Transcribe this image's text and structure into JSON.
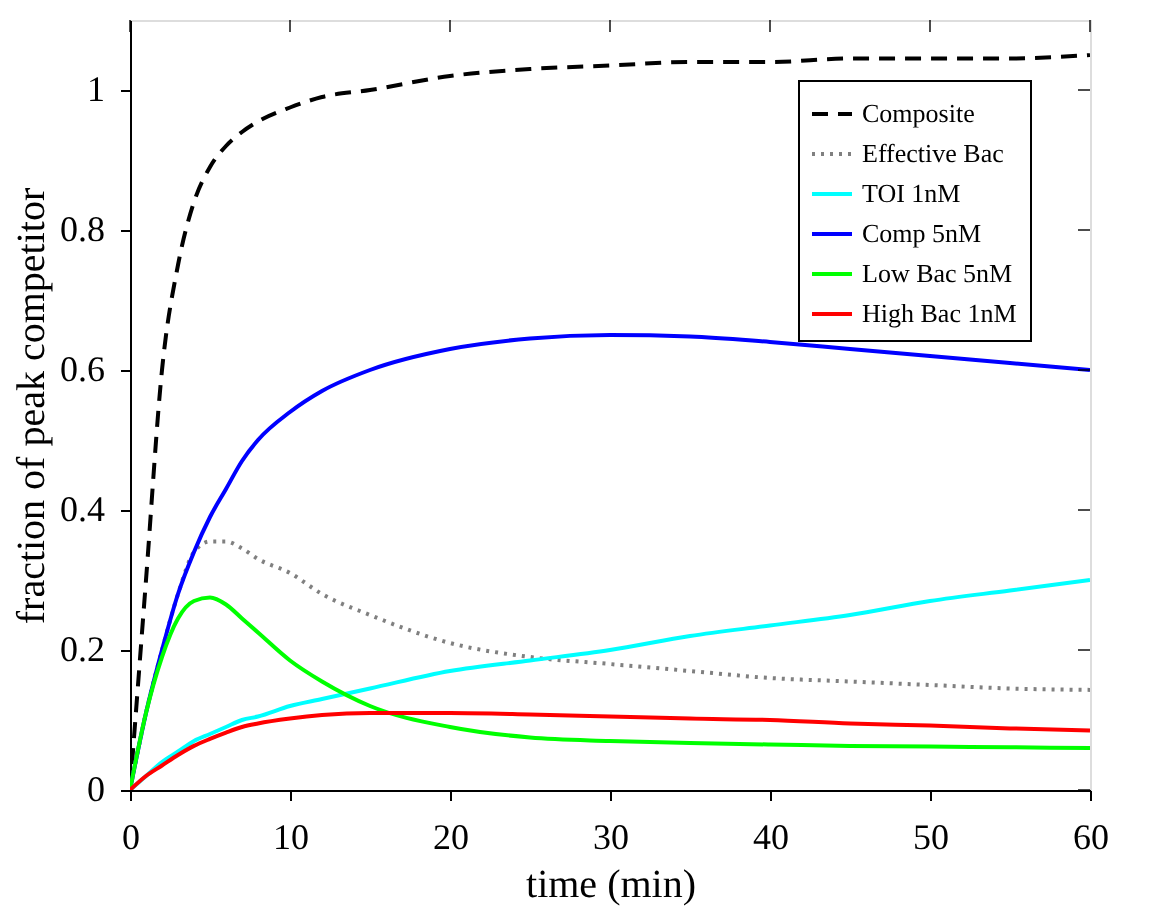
{
  "chart_data": {
    "type": "line",
    "xlabel": "time (min)",
    "ylabel": "fraction of peak competitor",
    "xlim": [
      0,
      60
    ],
    "ylim": [
      0,
      1.1
    ],
    "xticks": [
      0,
      10,
      20,
      30,
      40,
      50,
      60
    ],
    "yticks": [
      0,
      0.2,
      0.4,
      0.6,
      0.8,
      1
    ],
    "grid": false,
    "legend": "top right",
    "marker": "none",
    "x": [
      0,
      1,
      2,
      3,
      4,
      5,
      6,
      7,
      8,
      10,
      12,
      15,
      20,
      25,
      30,
      35,
      40,
      45,
      50,
      55,
      60
    ],
    "series": [
      {
        "name": "Composite",
        "color": "#000000",
        "line_style": "dashed",
        "values": [
          0,
          0.3,
          0.6,
          0.75,
          0.84,
          0.89,
          0.92,
          0.94,
          0.955,
          0.975,
          0.99,
          1.0,
          1.02,
          1.03,
          1.035,
          1.04,
          1.04,
          1.045,
          1.045,
          1.045,
          1.05
        ]
      },
      {
        "name": "Effective Bac",
        "color": "#808080",
        "line_style": "dotted",
        "values": [
          0,
          0.11,
          0.2,
          0.28,
          0.34,
          0.355,
          0.355,
          0.345,
          0.33,
          0.31,
          0.28,
          0.25,
          0.21,
          0.19,
          0.18,
          0.17,
          0.16,
          0.155,
          0.15,
          0.145,
          0.143
        ]
      },
      {
        "name": "TOI 1nM",
        "color": "#00ffff",
        "line_style": "solid",
        "values": [
          0,
          0.02,
          0.04,
          0.055,
          0.07,
          0.08,
          0.09,
          0.1,
          0.105,
          0.12,
          0.13,
          0.145,
          0.17,
          0.185,
          0.2,
          0.22,
          0.235,
          0.25,
          0.27,
          0.285,
          0.3
        ]
      },
      {
        "name": "Comp 5nM",
        "color": "#0000ff",
        "line_style": "solid",
        "values": [
          0,
          0.11,
          0.2,
          0.28,
          0.34,
          0.39,
          0.43,
          0.47,
          0.5,
          0.54,
          0.57,
          0.6,
          0.63,
          0.645,
          0.65,
          0.648,
          0.64,
          0.63,
          0.62,
          0.61,
          0.6
        ]
      },
      {
        "name": "Low Bac 5nM",
        "color": "#00ff00",
        "line_style": "solid",
        "values": [
          0,
          0.11,
          0.19,
          0.245,
          0.27,
          0.275,
          0.265,
          0.245,
          0.225,
          0.185,
          0.155,
          0.12,
          0.09,
          0.075,
          0.07,
          0.067,
          0.065,
          0.063,
          0.062,
          0.061,
          0.06
        ]
      },
      {
        "name": "High Bac 1nM",
        "color": "#ff0000",
        "line_style": "solid",
        "values": [
          0,
          0.02,
          0.035,
          0.05,
          0.063,
          0.073,
          0.082,
          0.09,
          0.095,
          0.102,
          0.107,
          0.11,
          0.11,
          0.108,
          0.105,
          0.102,
          0.1,
          0.095,
          0.092,
          0.088,
          0.085
        ]
      }
    ]
  }
}
